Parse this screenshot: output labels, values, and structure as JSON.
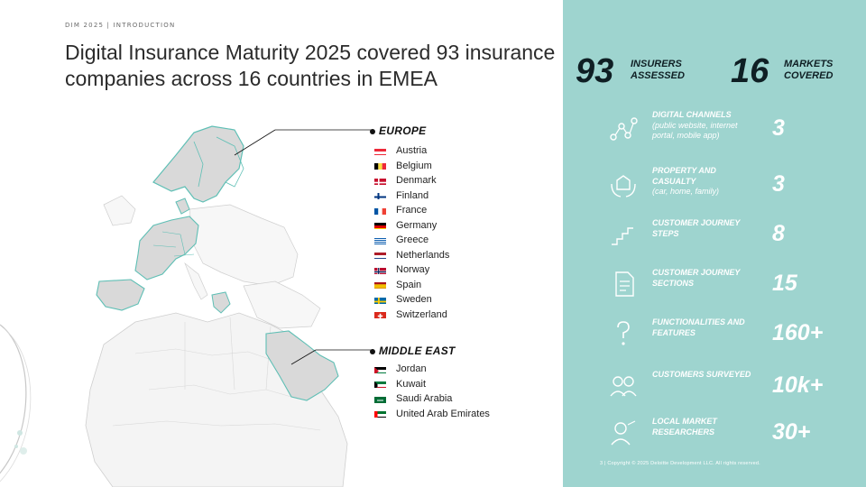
{
  "header": {
    "eyebrow": "DIM 2025 | INTRODUCTION",
    "title": "Digital Insurance Maturity 2025 covered 93 insurance companies across 16 countries in EMEA"
  },
  "regions": {
    "europe": {
      "name": "EUROPE",
      "countries": [
        {
          "name": "Austria",
          "flag": "austria"
        },
        {
          "name": "Belgium",
          "flag": "belgium"
        },
        {
          "name": "Denmark",
          "flag": "denmark"
        },
        {
          "name": "Finland",
          "flag": "finland"
        },
        {
          "name": "France",
          "flag": "france"
        },
        {
          "name": "Germany",
          "flag": "germany"
        },
        {
          "name": "Greece",
          "flag": "greece"
        },
        {
          "name": "Netherlands",
          "flag": "netherlands"
        },
        {
          "name": "Norway",
          "flag": "norway"
        },
        {
          "name": "Spain",
          "flag": "spain"
        },
        {
          "name": "Sweden",
          "flag": "sweden"
        },
        {
          "name": "Switzerland",
          "flag": "switzerland"
        }
      ]
    },
    "middle_east": {
      "name": "MIDDLE EAST",
      "countries": [
        {
          "name": "Jordan",
          "flag": "jordan"
        },
        {
          "name": "Kuwait",
          "flag": "kuwait"
        },
        {
          "name": "Saudi Arabia",
          "flag": "saudi-arabia"
        },
        {
          "name": "United Arab Emirates",
          "flag": "uae"
        }
      ]
    }
  },
  "panel": {
    "insurers": {
      "value": "93",
      "label_line1": "INSURERS",
      "label_line2": "ASSESSED"
    },
    "markets": {
      "value": "16",
      "label_line1": "MARKETS",
      "label_line2": "COVERED"
    },
    "stats": [
      {
        "icon": "channels-icon",
        "label": "DIGITAL CHANNELS",
        "sub": "(public website, internet portal, mobile app)",
        "value": "3"
      },
      {
        "icon": "property-casualty-icon",
        "label": "PROPERTY AND CASUALTY",
        "sub": "(car, home, family)",
        "value": "3"
      },
      {
        "icon": "steps-icon",
        "label": "CUSTOMER JOURNEY STEPS",
        "sub": "",
        "value": "8"
      },
      {
        "icon": "document-icon",
        "label": "CUSTOMER JOURNEY SECTIONS",
        "sub": "",
        "value": "15"
      },
      {
        "icon": "question-icon",
        "label": "FUNCTIONALITIES AND FEATURES",
        "sub": "",
        "value": "160+"
      },
      {
        "icon": "customers-icon",
        "label": "CUSTOMERS SURVEYED",
        "sub": "",
        "value": "10k+"
      },
      {
        "icon": "researchers-icon",
        "label": "LOCAL MARKET RESEARCHERS",
        "sub": "",
        "value": "30+"
      }
    ],
    "footer": "3 | Copyright © 2025 Deloitte Development LLC. All rights reserved."
  },
  "colors": {
    "panel_bg": "#9ed4cf",
    "highlight_fill": "#d9d9d9",
    "highlight_stroke": "#5fbfb5",
    "dark_text": "#0f1f24"
  }
}
